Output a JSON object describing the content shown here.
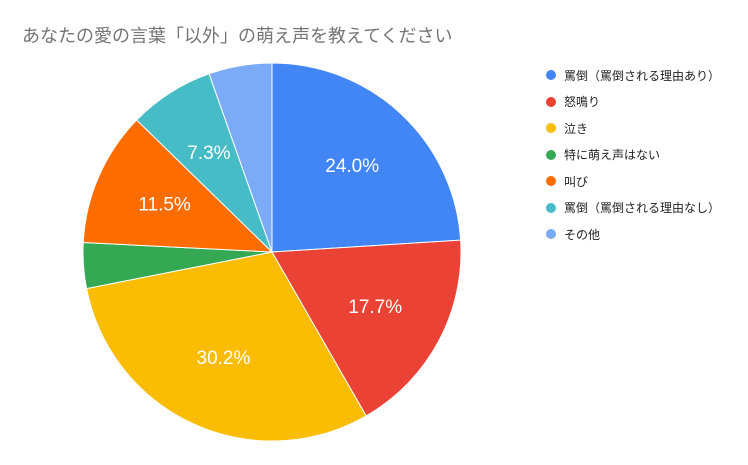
{
  "chart_data": {
    "type": "pie",
    "title": "あなたの愛の言葉「以外」の萌え声を教えてください",
    "slices": [
      {
        "label": "罵倒（罵倒される理由あり）",
        "value": 24.0,
        "color": "#4285f4",
        "data_label": "24.0%"
      },
      {
        "label": "怒鳴り",
        "value": 17.7,
        "color": "#ea4335",
        "data_label": "17.7%"
      },
      {
        "label": "泣き",
        "value": 30.2,
        "color": "#fbbc04",
        "data_label": "30.2%"
      },
      {
        "label": "特に萌え声はない",
        "value": 3.9,
        "color": "#34a853",
        "data_label": ""
      },
      {
        "label": "叫び",
        "value": 11.5,
        "color": "#ff6d01",
        "data_label": "11.5%"
      },
      {
        "label": "罵倒（罵倒される理由なし）",
        "value": 7.3,
        "color": "#46bdc6",
        "data_label": "7.3%"
      },
      {
        "label": "その他",
        "value": 5.4,
        "color": "#7baaf7",
        "data_label": ""
      }
    ],
    "legend_position": "right"
  }
}
